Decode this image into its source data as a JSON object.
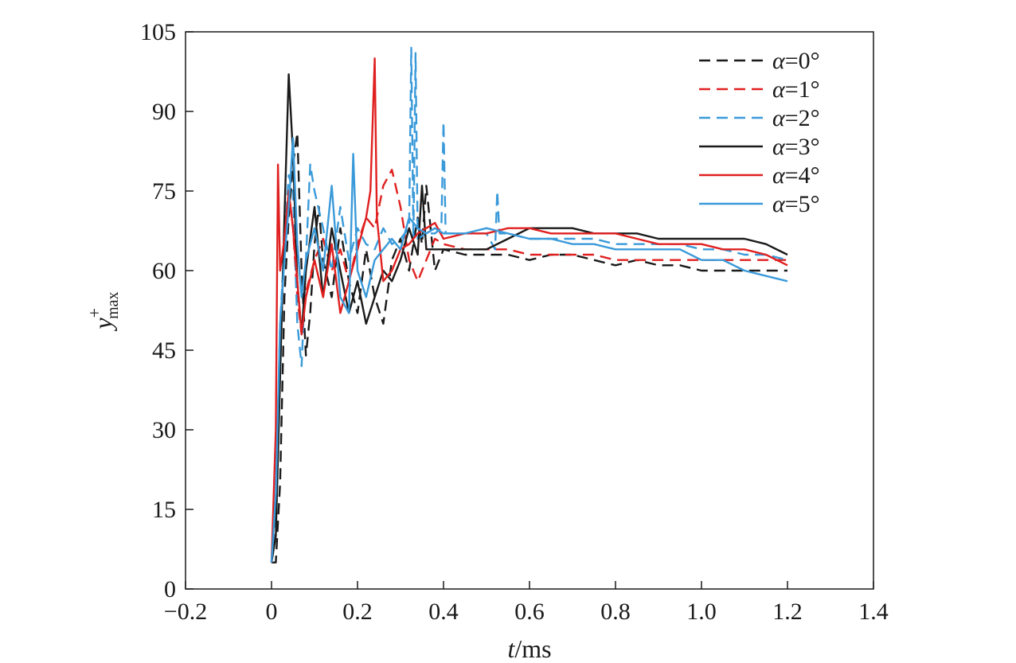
{
  "chart_data": {
    "type": "line",
    "title": "",
    "xlabel": {
      "italic": "t",
      "rest": "/ms"
    },
    "ylabel": {
      "base": "y",
      "sup": "+",
      "sub": "max"
    },
    "xlim": [
      -0.2,
      1.4
    ],
    "ylim": [
      0,
      105
    ],
    "x_ticks": [
      -0.2,
      0,
      0.2,
      0.4,
      0.6,
      0.8,
      1.0,
      1.2,
      1.4
    ],
    "x_tick_labels": [
      "−0.2",
      "0",
      "0.2",
      "0.4",
      "0.6",
      "0.8",
      "1.0",
      "1.2",
      "1.4"
    ],
    "y_ticks": [
      0,
      15,
      30,
      45,
      60,
      75,
      90,
      105
    ],
    "y_tick_labels": [
      "0",
      "15",
      "30",
      "45",
      "60",
      "75",
      "90",
      "105"
    ],
    "grid": false,
    "legend_position": "top-right",
    "series": [
      {
        "name": "α=0°",
        "legend": {
          "sym": "α",
          "rest": "=0°"
        },
        "color": "#1a1a1a",
        "dash": "dashed",
        "points": [
          [
            0.0,
            5
          ],
          [
            0.01,
            5
          ],
          [
            0.02,
            20
          ],
          [
            0.03,
            55
          ],
          [
            0.04,
            70
          ],
          [
            0.05,
            80
          ],
          [
            0.06,
            86
          ],
          [
            0.07,
            60
          ],
          [
            0.08,
            44
          ],
          [
            0.09,
            52
          ],
          [
            0.1,
            65
          ],
          [
            0.11,
            72
          ],
          [
            0.12,
            62
          ],
          [
            0.14,
            55
          ],
          [
            0.16,
            68
          ],
          [
            0.18,
            58
          ],
          [
            0.2,
            52
          ],
          [
            0.22,
            64
          ],
          [
            0.24,
            55
          ],
          [
            0.26,
            50
          ],
          [
            0.28,
            62
          ],
          [
            0.3,
            66
          ],
          [
            0.32,
            60
          ],
          [
            0.34,
            70
          ],
          [
            0.35,
            65
          ],
          [
            0.36,
            76
          ],
          [
            0.38,
            60
          ],
          [
            0.4,
            64
          ],
          [
            0.45,
            63
          ],
          [
            0.5,
            63
          ],
          [
            0.55,
            63
          ],
          [
            0.6,
            62
          ],
          [
            0.65,
            63
          ],
          [
            0.7,
            63
          ],
          [
            0.75,
            62
          ],
          [
            0.8,
            61
          ],
          [
            0.85,
            62
          ],
          [
            0.9,
            61
          ],
          [
            0.95,
            61
          ],
          [
            1.0,
            60
          ],
          [
            1.05,
            60
          ],
          [
            1.1,
            60
          ],
          [
            1.15,
            60
          ],
          [
            1.2,
            60
          ]
        ]
      },
      {
        "name": "α=1°",
        "legend": {
          "sym": "α",
          "rest": "=1°"
        },
        "color": "#e02020",
        "dash": "dashed",
        "points": [
          [
            0.0,
            5
          ],
          [
            0.01,
            12
          ],
          [
            0.02,
            45
          ],
          [
            0.03,
            65
          ],
          [
            0.04,
            75
          ],
          [
            0.05,
            68
          ],
          [
            0.06,
            55
          ],
          [
            0.07,
            48
          ],
          [
            0.08,
            56
          ],
          [
            0.1,
            62
          ],
          [
            0.12,
            66
          ],
          [
            0.14,
            60
          ],
          [
            0.16,
            64
          ],
          [
            0.18,
            58
          ],
          [
            0.2,
            65
          ],
          [
            0.22,
            70
          ],
          [
            0.24,
            68
          ],
          [
            0.26,
            76
          ],
          [
            0.28,
            79
          ],
          [
            0.3,
            72
          ],
          [
            0.32,
            62
          ],
          [
            0.34,
            58
          ],
          [
            0.36,
            62
          ],
          [
            0.38,
            66
          ],
          [
            0.4,
            65
          ],
          [
            0.45,
            64
          ],
          [
            0.5,
            64
          ],
          [
            0.55,
            64
          ],
          [
            0.6,
            63
          ],
          [
            0.65,
            63
          ],
          [
            0.7,
            63
          ],
          [
            0.75,
            63
          ],
          [
            0.8,
            62
          ],
          [
            0.85,
            62
          ],
          [
            0.9,
            62
          ],
          [
            0.95,
            62
          ],
          [
            1.0,
            62
          ],
          [
            1.05,
            62
          ],
          [
            1.1,
            62
          ],
          [
            1.15,
            62
          ],
          [
            1.2,
            62
          ]
        ]
      },
      {
        "name": "α=2°",
        "legend": {
          "sym": "α",
          "rest": "=2°"
        },
        "color": "#3a9ad9",
        "dash": "dashed",
        "points": [
          [
            0.0,
            5
          ],
          [
            0.01,
            15
          ],
          [
            0.02,
            50
          ],
          [
            0.03,
            65
          ],
          [
            0.04,
            78
          ],
          [
            0.05,
            75
          ],
          [
            0.06,
            50
          ],
          [
            0.07,
            42
          ],
          [
            0.08,
            62
          ],
          [
            0.09,
            80
          ],
          [
            0.1,
            75
          ],
          [
            0.12,
            68
          ],
          [
            0.14,
            60
          ],
          [
            0.16,
            72
          ],
          [
            0.18,
            62
          ],
          [
            0.2,
            68
          ],
          [
            0.22,
            65
          ],
          [
            0.24,
            64
          ],
          [
            0.26,
            68
          ],
          [
            0.28,
            65
          ],
          [
            0.3,
            66
          ],
          [
            0.32,
            68
          ],
          [
            0.325,
            102
          ],
          [
            0.33,
            66
          ],
          [
            0.335,
            101
          ],
          [
            0.34,
            66
          ],
          [
            0.36,
            67
          ],
          [
            0.38,
            67
          ],
          [
            0.395,
            68
          ],
          [
            0.4,
            88
          ],
          [
            0.405,
            67
          ],
          [
            0.45,
            67
          ],
          [
            0.5,
            67
          ],
          [
            0.52,
            64
          ],
          [
            0.525,
            75
          ],
          [
            0.53,
            67
          ],
          [
            0.55,
            67
          ],
          [
            0.6,
            66
          ],
          [
            0.65,
            66
          ],
          [
            0.7,
            66
          ],
          [
            0.75,
            66
          ],
          [
            0.8,
            65
          ],
          [
            0.85,
            65
          ],
          [
            0.9,
            65
          ],
          [
            0.95,
            65
          ],
          [
            1.0,
            64
          ],
          [
            1.05,
            64
          ],
          [
            1.1,
            63
          ],
          [
            1.15,
            63
          ],
          [
            1.2,
            62
          ]
        ]
      },
      {
        "name": "α=3°",
        "legend": {
          "sym": "α",
          "rest": "=3°"
        },
        "color": "#1a1a1a",
        "dash": "solid",
        "points": [
          [
            0.0,
            5
          ],
          [
            0.01,
            10
          ],
          [
            0.02,
            40
          ],
          [
            0.03,
            70
          ],
          [
            0.04,
            97
          ],
          [
            0.05,
            82
          ],
          [
            0.06,
            58
          ],
          [
            0.07,
            48
          ],
          [
            0.08,
            60
          ],
          [
            0.1,
            72
          ],
          [
            0.12,
            55
          ],
          [
            0.14,
            68
          ],
          [
            0.16,
            60
          ],
          [
            0.18,
            52
          ],
          [
            0.2,
            58
          ],
          [
            0.22,
            50
          ],
          [
            0.24,
            55
          ],
          [
            0.26,
            60
          ],
          [
            0.28,
            58
          ],
          [
            0.3,
            62
          ],
          [
            0.32,
            68
          ],
          [
            0.34,
            63
          ],
          [
            0.35,
            76
          ],
          [
            0.36,
            64
          ],
          [
            0.38,
            64
          ],
          [
            0.4,
            64
          ],
          [
            0.45,
            64
          ],
          [
            0.5,
            64
          ],
          [
            0.55,
            66
          ],
          [
            0.6,
            68
          ],
          [
            0.65,
            68
          ],
          [
            0.7,
            68
          ],
          [
            0.75,
            67
          ],
          [
            0.8,
            67
          ],
          [
            0.85,
            67
          ],
          [
            0.9,
            66
          ],
          [
            0.95,
            66
          ],
          [
            1.0,
            66
          ],
          [
            1.05,
            66
          ],
          [
            1.1,
            66
          ],
          [
            1.15,
            65
          ],
          [
            1.2,
            63
          ]
        ]
      },
      {
        "name": "α=4°",
        "legend": {
          "sym": "α",
          "rest": "=4°"
        },
        "color": "#e02020",
        "dash": "solid",
        "points": [
          [
            0.0,
            5
          ],
          [
            0.01,
            30
          ],
          [
            0.015,
            80
          ],
          [
            0.02,
            60
          ],
          [
            0.03,
            66
          ],
          [
            0.04,
            75
          ],
          [
            0.05,
            68
          ],
          [
            0.06,
            58
          ],
          [
            0.07,
            48
          ],
          [
            0.08,
            55
          ],
          [
            0.1,
            62
          ],
          [
            0.12,
            55
          ],
          [
            0.14,
            65
          ],
          [
            0.16,
            52
          ],
          [
            0.18,
            58
          ],
          [
            0.2,
            64
          ],
          [
            0.22,
            70
          ],
          [
            0.23,
            75
          ],
          [
            0.24,
            100
          ],
          [
            0.245,
            70
          ],
          [
            0.26,
            58
          ],
          [
            0.28,
            60
          ],
          [
            0.3,
            64
          ],
          [
            0.32,
            65
          ],
          [
            0.34,
            67
          ],
          [
            0.36,
            68
          ],
          [
            0.38,
            69
          ],
          [
            0.4,
            66
          ],
          [
            0.45,
            67
          ],
          [
            0.5,
            67
          ],
          [
            0.55,
            68
          ],
          [
            0.6,
            68
          ],
          [
            0.65,
            67
          ],
          [
            0.7,
            67
          ],
          [
            0.75,
            67
          ],
          [
            0.8,
            67
          ],
          [
            0.85,
            66
          ],
          [
            0.9,
            65
          ],
          [
            0.95,
            65
          ],
          [
            1.0,
            65
          ],
          [
            1.05,
            64
          ],
          [
            1.1,
            64
          ],
          [
            1.15,
            63
          ],
          [
            1.2,
            61
          ]
        ]
      },
      {
        "name": "α=5°",
        "legend": {
          "sym": "α",
          "rest": "=5°"
        },
        "color": "#3a9ad9",
        "dash": "solid",
        "points": [
          [
            0.0,
            5
          ],
          [
            0.01,
            18
          ],
          [
            0.02,
            50
          ],
          [
            0.03,
            62
          ],
          [
            0.04,
            72
          ],
          [
            0.05,
            85
          ],
          [
            0.06,
            65
          ],
          [
            0.07,
            55
          ],
          [
            0.08,
            62
          ],
          [
            0.1,
            68
          ],
          [
            0.12,
            60
          ],
          [
            0.14,
            76
          ],
          [
            0.16,
            55
          ],
          [
            0.18,
            52
          ],
          [
            0.19,
            82
          ],
          [
            0.2,
            60
          ],
          [
            0.22,
            55
          ],
          [
            0.24,
            62
          ],
          [
            0.26,
            64
          ],
          [
            0.28,
            66
          ],
          [
            0.3,
            64
          ],
          [
            0.32,
            70
          ],
          [
            0.34,
            68
          ],
          [
            0.36,
            67
          ],
          [
            0.38,
            68
          ],
          [
            0.4,
            67
          ],
          [
            0.45,
            67
          ],
          [
            0.5,
            68
          ],
          [
            0.55,
            67
          ],
          [
            0.6,
            66
          ],
          [
            0.65,
            66
          ],
          [
            0.7,
            65
          ],
          [
            0.75,
            65
          ],
          [
            0.8,
            64
          ],
          [
            0.85,
            64
          ],
          [
            0.9,
            64
          ],
          [
            0.95,
            64
          ],
          [
            1.0,
            62
          ],
          [
            1.05,
            62
          ],
          [
            1.1,
            60
          ],
          [
            1.15,
            59
          ],
          [
            1.2,
            58
          ]
        ]
      }
    ]
  }
}
